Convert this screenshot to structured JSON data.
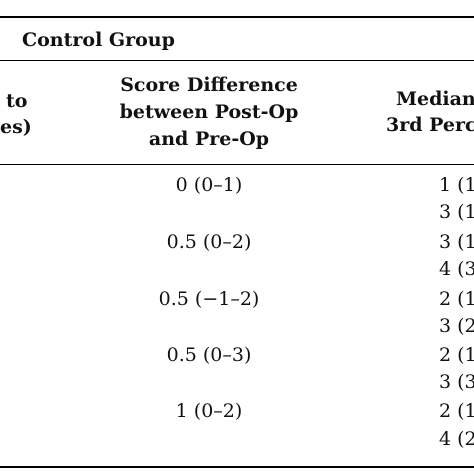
{
  "group_header": "Control Group",
  "columns": {
    "left_partial_line1": "to",
    "left_partial_line2": "es)",
    "score_diff_line1": "Score Difference",
    "score_diff_line2": "between Post-Op",
    "score_diff_line3": "and Pre-Op",
    "median_line1": "Median",
    "median_line2": "3rd Perc"
  },
  "rows": [
    {
      "score_diff": "0 (0–1)",
      "median_a": "1 (1",
      "median_b": "3 (1"
    },
    {
      "score_diff": "0.5 (0–2)",
      "median_a": "3 (1",
      "median_b": "4 (3"
    },
    {
      "score_diff": "0.5 (−1–2)",
      "median_a": "2 (1",
      "median_b": "3 (2"
    },
    {
      "score_diff": "0.5 (0–3)",
      "median_a": "2 (1",
      "median_b": "3 (3"
    },
    {
      "score_diff": "1 (0–2)",
      "median_a": "2 (1",
      "median_b": "4 (2"
    }
  ]
}
